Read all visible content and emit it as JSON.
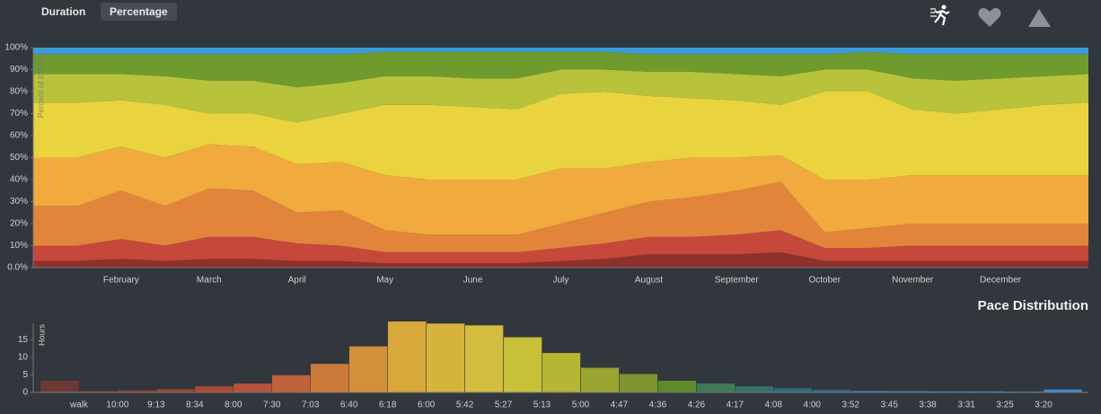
{
  "toolbar": {
    "buttons": [
      "Duration",
      "Percentage"
    ]
  },
  "chart_data": [
    {
      "type": "stacked_area",
      "y_label": "Percent of training",
      "categories": [
        null,
        null,
        "February",
        null,
        "March",
        null,
        "April",
        null,
        "May",
        null,
        "June",
        null,
        "July",
        null,
        "August",
        null,
        "September",
        null,
        "October",
        null,
        "November",
        null,
        "December",
        null,
        null
      ],
      "ylim": [
        0,
        100
      ],
      "yticks": [
        {
          "value": 0,
          "label": "0.0%"
        },
        {
          "value": 10,
          "label": "10%"
        },
        {
          "value": 20,
          "label": "20%"
        },
        {
          "value": 30,
          "label": "30%"
        },
        {
          "value": 40,
          "label": "40%"
        },
        {
          "value": 50,
          "label": "50%"
        },
        {
          "value": 60,
          "label": "60%"
        },
        {
          "value": 70,
          "label": "70%"
        },
        {
          "value": 80,
          "label": "80%"
        },
        {
          "value": 90,
          "label": "90%"
        },
        {
          "value": 100,
          "label": "100%"
        }
      ],
      "series": [
        {
          "color": "#8e302b",
          "values": [
            3,
            3,
            4,
            3,
            4,
            4,
            3,
            3,
            2,
            2,
            2,
            2,
            3,
            4,
            6,
            6,
            6,
            7,
            3,
            3,
            3,
            3,
            3,
            3,
            3
          ]
        },
        {
          "color": "#c5483b",
          "values": [
            7,
            7,
            9,
            7,
            10,
            10,
            8,
            7,
            5,
            5,
            5,
            5,
            6,
            7,
            8,
            8,
            9,
            10,
            6,
            6,
            7,
            7,
            7,
            7,
            7
          ]
        },
        {
          "color": "#e2853b",
          "values": [
            18,
            18,
            22,
            18,
            22,
            21,
            14,
            16,
            10,
            8,
            8,
            8,
            11,
            14,
            16,
            18,
            20,
            22,
            7,
            9,
            10,
            10,
            10,
            10,
            10
          ]
        },
        {
          "color": "#f0aa3d",
          "values": [
            22,
            22,
            20,
            22,
            20,
            20,
            22,
            22,
            25,
            25,
            25,
            25,
            25,
            20,
            18,
            18,
            15,
            12,
            24,
            22,
            22,
            22,
            22,
            22,
            22
          ]
        },
        {
          "color": "#e9d33f",
          "values": [
            25,
            25,
            21,
            24,
            14,
            15,
            19,
            22,
            32,
            34,
            33,
            32,
            34,
            35,
            30,
            27,
            26,
            23,
            40,
            40,
            30,
            28,
            30,
            32,
            33
          ]
        },
        {
          "color": "#b8c23a",
          "values": [
            13,
            13,
            12,
            13,
            15,
            15,
            16,
            14,
            13,
            13,
            13,
            14,
            11,
            10,
            11,
            12,
            12,
            13,
            10,
            10,
            14,
            15,
            14,
            13,
            13
          ]
        },
        {
          "color": "#6e9a2e",
          "values": [
            9,
            9,
            9,
            10,
            12,
            12,
            15,
            13,
            11,
            11,
            12,
            12,
            8,
            8,
            8,
            8,
            9,
            10,
            7,
            8,
            11,
            12,
            11,
            10,
            9
          ]
        },
        {
          "color": "#3b9ad8",
          "values": [
            3,
            3,
            3,
            3,
            3,
            3,
            3,
            3,
            2,
            2,
            2,
            2,
            2,
            2,
            3,
            3,
            3,
            3,
            3,
            2,
            3,
            3,
            3,
            3,
            3
          ]
        }
      ]
    },
    {
      "type": "histogram",
      "title": "Pace Distribution",
      "y_label": "Hours",
      "bins": [
        null,
        "walk",
        "10:00",
        "9:13",
        "8:34",
        "8:00",
        "7:30",
        "7:03",
        "6:40",
        "6:18",
        "6:00",
        "5:42",
        "5:27",
        "5:13",
        "5:00",
        "4:47",
        "4:36",
        "4:26",
        "4:17",
        "4:08",
        "4:00",
        "3:52",
        "3:45",
        "3:38",
        "3:31",
        "3:25",
        "3:20",
        null
      ],
      "values": [
        3.4,
        0.5,
        0.7,
        1.0,
        1.8,
        2.6,
        5.0,
        8.2,
        13.2,
        20.3,
        19.7,
        19.2,
        15.8,
        11.3,
        7.1,
        5.3,
        3.4,
        2.6,
        1.8,
        1.3,
        0.8,
        0.6,
        0.5,
        0.4,
        0.4,
        0.3,
        0.9
      ],
      "colors": [
        "#6b3a35",
        "#7a3b34",
        "#8a3d33",
        "#9a4232",
        "#a84a33",
        "#b6533a",
        "#c0623c",
        "#cc7a3a",
        "#d48f3a",
        "#d8a83a",
        "#d6b43c",
        "#d4bc3e",
        "#c9c03a",
        "#b5b633",
        "#9aa532",
        "#7f952f",
        "#5e8a2c",
        "#3f7a52",
        "#33706a",
        "#2f6a78",
        "#2e6a85",
        "#2d6e92",
        "#2f74a0",
        "#3078ad",
        "#327db8",
        "#3582c2",
        "#3a8bd0"
      ],
      "ylim": [
        0,
        21
      ],
      "yticks": [
        0,
        5,
        10,
        15
      ]
    }
  ]
}
